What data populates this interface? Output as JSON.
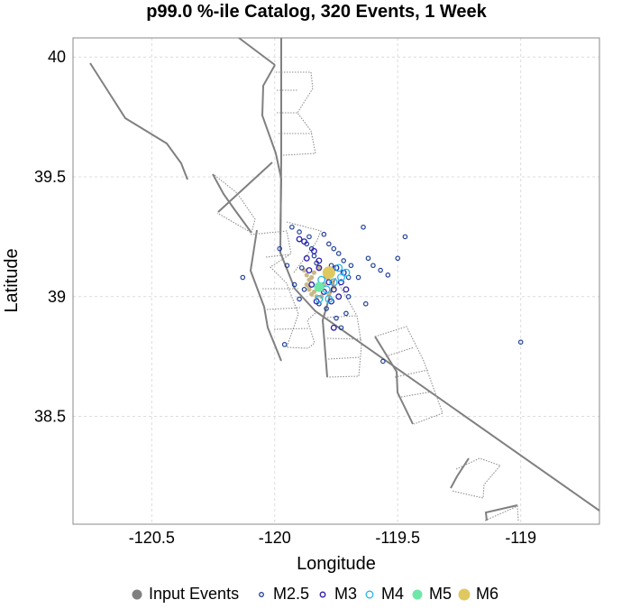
{
  "chart_data": {
    "type": "scatter",
    "title": "p99.0 %-ile Catalog, 320 Events, 1 Week",
    "xlabel": "Longitude",
    "ylabel": "Latitude",
    "xlim": [
      -120.82,
      -118.68
    ],
    "ylim": [
      38.05,
      40.08
    ],
    "xticks": [
      -120.5,
      -120,
      -119.5,
      -119
    ],
    "xtick_labels": [
      "-120.5",
      "-120",
      "-119.5",
      "-119"
    ],
    "yticks": [
      38.5,
      39,
      39.5,
      40
    ],
    "ytick_labels": [
      "38.5",
      "39",
      "39.5",
      "40"
    ],
    "grid": true,
    "legend_position": "bottom",
    "legend": [
      {
        "label": "Input Events",
        "color": "#808080",
        "marker": "filled-circle"
      },
      {
        "label": "M2.5",
        "color": "#1f3f99",
        "marker": "open-circle-small"
      },
      {
        "label": "M3",
        "color": "#2b1fb0",
        "marker": "open-circle"
      },
      {
        "label": "M4",
        "color": "#22b8e8",
        "marker": "open-circle-large"
      },
      {
        "label": "M5",
        "color": "#6ee8a8",
        "marker": "filled-circle"
      },
      {
        "label": "M6",
        "color": "#e0c860",
        "marker": "filled-circle"
      }
    ],
    "series": [
      {
        "name": "Input Events",
        "color": "#c9b888",
        "points": [
          [
            -119.88,
            39.11
          ],
          [
            -119.87,
            39.09
          ],
          [
            -119.86,
            39.07
          ],
          [
            -119.87,
            39.05
          ],
          [
            -119.86,
            39.03
          ],
          [
            -119.85,
            39.01
          ],
          [
            -119.83,
            39.0
          ],
          [
            -119.82,
            39.12
          ],
          [
            -119.84,
            39.1
          ],
          [
            -119.85,
            39.08
          ],
          [
            -119.86,
            39.04
          ],
          [
            -119.84,
            39.02
          ],
          [
            -119.81,
            39.03
          ],
          [
            -119.8,
            39.05
          ],
          [
            -119.79,
            39.08
          ],
          [
            -119.78,
            39.1
          ],
          [
            -119.77,
            39.06
          ],
          [
            -119.76,
            39.04
          ],
          [
            -119.78,
            39.01
          ],
          [
            -119.81,
            39.0
          ]
        ]
      },
      {
        "name": "M2.5",
        "color": "#1f3f99",
        "points": [
          [
            -119.93,
            39.29
          ],
          [
            -119.9,
            39.27
          ],
          [
            -119.87,
            39.22
          ],
          [
            -119.85,
            39.2
          ],
          [
            -119.84,
            39.17
          ],
          [
            -119.83,
            39.14
          ],
          [
            -119.8,
            39.26
          ],
          [
            -119.78,
            39.22
          ],
          [
            -119.74,
            39.18
          ],
          [
            -119.72,
            39.15
          ],
          [
            -119.69,
            39.13
          ],
          [
            -119.66,
            39.08
          ],
          [
            -119.64,
            39.29
          ],
          [
            -119.62,
            39.16
          ],
          [
            -119.6,
            39.13
          ],
          [
            -119.57,
            39.11
          ],
          [
            -119.54,
            39.09
          ],
          [
            -119.5,
            39.16
          ],
          [
            -119.47,
            39.25
          ],
          [
            -119.63,
            38.97
          ],
          [
            -119.71,
            38.93
          ],
          [
            -119.75,
            38.91
          ],
          [
            -119.82,
            38.97
          ],
          [
            -119.88,
            39.03
          ],
          [
            -119.95,
            39.13
          ],
          [
            -119.98,
            39.2
          ],
          [
            -120.13,
            39.08
          ],
          [
            -119.96,
            38.8
          ],
          [
            -119.73,
            38.87
          ],
          [
            -119.56,
            38.73
          ],
          [
            -119.0,
            38.81
          ],
          [
            -119.92,
            39.05
          ],
          [
            -119.9,
            38.99
          ],
          [
            -119.79,
            38.95
          ],
          [
            -119.76,
            39.2
          ],
          [
            -119.7,
            39.0
          ],
          [
            -119.86,
            39.25
          ],
          [
            -119.89,
            39.12
          ],
          [
            -119.7,
            39.08
          ],
          [
            -119.77,
            39.13
          ]
        ]
      },
      {
        "name": "M3",
        "color": "#2b1fb0",
        "points": [
          [
            -119.88,
            39.23
          ],
          [
            -119.9,
            39.24
          ],
          [
            -119.84,
            39.19
          ],
          [
            -119.87,
            39.16
          ],
          [
            -119.82,
            39.12
          ],
          [
            -119.78,
            39.06
          ],
          [
            -119.76,
            39.03
          ],
          [
            -119.74,
            39.0
          ],
          [
            -119.72,
            39.1
          ],
          [
            -119.75,
            39.12
          ],
          [
            -119.8,
            39.02
          ],
          [
            -119.83,
            38.98
          ],
          [
            -119.85,
            39.05
          ],
          [
            -119.79,
            39.09
          ],
          [
            -119.73,
            39.06
          ],
          [
            -119.71,
            39.03
          ],
          [
            -119.76,
            38.87
          ],
          [
            -119.82,
            39.15
          ],
          [
            -119.86,
            39.11
          ],
          [
            -119.77,
            38.98
          ]
        ]
      },
      {
        "name": "M4",
        "color": "#22b8e8",
        "points": [
          [
            -119.76,
            39.06
          ],
          [
            -119.73,
            39.08
          ],
          [
            -119.79,
            39.03
          ],
          [
            -119.74,
            39.12
          ],
          [
            -119.71,
            39.1
          ],
          [
            -119.81,
            39.07
          ],
          [
            -119.78,
            38.99
          ],
          [
            -119.82,
            38.99
          ]
        ]
      },
      {
        "name": "M5",
        "color": "#6ee8a8",
        "points": [
          [
            -119.82,
            39.04
          ]
        ]
      },
      {
        "name": "M6",
        "color": "#e0c860",
        "points": [
          [
            -119.78,
            39.1
          ]
        ]
      }
    ]
  }
}
